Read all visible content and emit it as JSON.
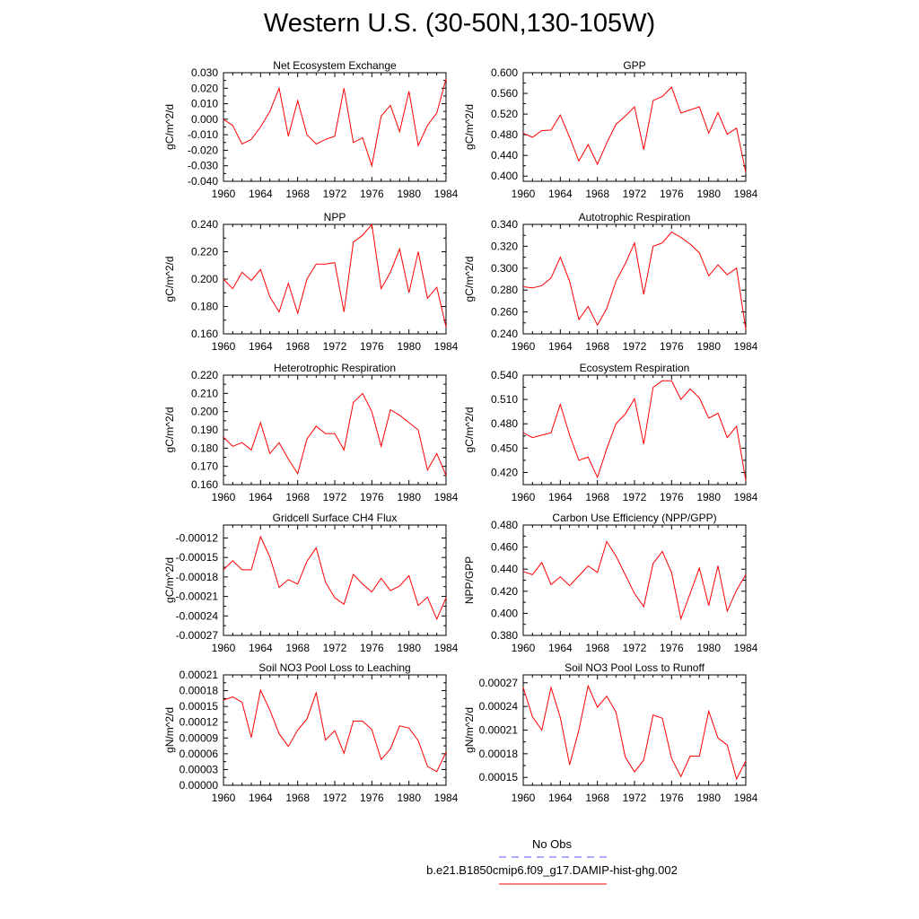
{
  "title": "Western U.S. (30-50N,130-105W)",
  "legend": {
    "obs_label": "No Obs",
    "obs_color": "#5a5aff",
    "run_label": "b.e21.B1850cmip6.f09_g17.DAMIP-hist-ghg.002",
    "run_color": "#ff0000"
  },
  "chart_data": [
    {
      "type": "line",
      "title": "Net Ecosystem Exchange",
      "ylabel": "gC/m^2/d",
      "xlabel": "",
      "xlim": [
        1960,
        1984
      ],
      "ylim": [
        -0.04,
        0.03
      ],
      "xticks": [
        1960,
        1964,
        1968,
        1972,
        1976,
        1980,
        1984
      ],
      "xtick_labels": [
        "1960",
        "1964",
        "1968",
        "1972",
        "1976",
        "1980",
        "1984"
      ],
      "yticks": [
        -0.04,
        -0.03,
        -0.02,
        -0.01,
        0.0,
        0.01,
        0.02,
        0.03
      ],
      "ytick_labels": [
        "-0.040",
        "-0.030",
        "-0.020",
        "-0.010",
        "0.000",
        "0.010",
        "0.020",
        "0.030"
      ],
      "x": [
        1960,
        1961,
        1962,
        1963,
        1964,
        1965,
        1966,
        1967,
        1968,
        1969,
        1970,
        1971,
        1972,
        1973,
        1974,
        1975,
        1976,
        1977,
        1978,
        1979,
        1980,
        1981,
        1982,
        1983,
        1984
      ],
      "series": [
        {
          "name": "b.e21.B1850cmip6.f09_g17.DAMIP-hist-ghg.002",
          "values": [
            0.0,
            -0.004,
            -0.016,
            -0.013,
            -0.005,
            0.005,
            0.02,
            -0.011,
            0.012,
            -0.01,
            -0.016,
            -0.013,
            -0.011,
            0.02,
            -0.015,
            -0.012,
            -0.03,
            0.002,
            0.009,
            -0.008,
            0.018,
            -0.017,
            -0.004,
            0.004,
            0.026
          ]
        }
      ]
    },
    {
      "type": "line",
      "title": "GPP",
      "ylabel": "gC/m^2/d",
      "xlabel": "",
      "xlim": [
        1960,
        1984
      ],
      "ylim": [
        0.39,
        0.6
      ],
      "xticks": [
        1960,
        1964,
        1968,
        1972,
        1976,
        1980,
        1984
      ],
      "xtick_labels": [
        "1960",
        "1964",
        "1968",
        "1972",
        "1976",
        "1980",
        "1984"
      ],
      "yticks": [
        0.4,
        0.44,
        0.48,
        0.52,
        0.56,
        0.6
      ],
      "ytick_labels": [
        "0.400",
        "0.440",
        "0.480",
        "0.520",
        "0.560",
        "0.600"
      ],
      "x": [
        1960,
        1961,
        1962,
        1963,
        1964,
        1965,
        1966,
        1967,
        1968,
        1969,
        1970,
        1971,
        1972,
        1973,
        1974,
        1975,
        1976,
        1977,
        1978,
        1979,
        1980,
        1981,
        1982,
        1983,
        1984
      ],
      "series": [
        {
          "name": "b.e21.B1850cmip6.f09_g17.DAMIP-hist-ghg.002",
          "values": [
            0.483,
            0.475,
            0.488,
            0.489,
            0.518,
            0.475,
            0.429,
            0.461,
            0.423,
            0.464,
            0.5,
            0.516,
            0.534,
            0.451,
            0.546,
            0.554,
            0.572,
            0.522,
            0.528,
            0.534,
            0.483,
            0.523,
            0.481,
            0.493,
            0.407
          ]
        }
      ]
    },
    {
      "type": "line",
      "title": "NPP",
      "ylabel": "gC/m^2/d",
      "xlabel": "",
      "xlim": [
        1960,
        1984
      ],
      "ylim": [
        0.16,
        0.24
      ],
      "xticks": [
        1960,
        1964,
        1968,
        1972,
        1976,
        1980,
        1984
      ],
      "xtick_labels": [
        "1960",
        "1964",
        "1968",
        "1972",
        "1976",
        "1980",
        "1984"
      ],
      "yticks": [
        0.16,
        0.18,
        0.2,
        0.22,
        0.24
      ],
      "ytick_labels": [
        "0.160",
        "0.180",
        "0.200",
        "0.220",
        "0.240"
      ],
      "x": [
        1960,
        1961,
        1962,
        1963,
        1964,
        1965,
        1966,
        1967,
        1968,
        1969,
        1970,
        1971,
        1972,
        1973,
        1974,
        1975,
        1976,
        1977,
        1978,
        1979,
        1980,
        1981,
        1982,
        1983,
        1984
      ],
      "series": [
        {
          "name": "b.e21.B1850cmip6.f09_g17.DAMIP-hist-ghg.002",
          "values": [
            0.2,
            0.193,
            0.205,
            0.199,
            0.207,
            0.187,
            0.176,
            0.197,
            0.175,
            0.2,
            0.211,
            0.211,
            0.212,
            0.176,
            0.227,
            0.232,
            0.24,
            0.193,
            0.205,
            0.222,
            0.19,
            0.22,
            0.186,
            0.194,
            0.165
          ]
        }
      ]
    },
    {
      "type": "line",
      "title": "Autotrophic Respiration",
      "ylabel": "gC/m^2/d",
      "xlabel": "",
      "xlim": [
        1960,
        1984
      ],
      "ylim": [
        0.24,
        0.34
      ],
      "xticks": [
        1960,
        1964,
        1968,
        1972,
        1976,
        1980,
        1984
      ],
      "xtick_labels": [
        "1960",
        "1964",
        "1968",
        "1972",
        "1976",
        "1980",
        "1984"
      ],
      "yticks": [
        0.24,
        0.26,
        0.28,
        0.3,
        0.32,
        0.34
      ],
      "ytick_labels": [
        "0.240",
        "0.260",
        "0.280",
        "0.300",
        "0.320",
        "0.340"
      ],
      "x": [
        1960,
        1961,
        1962,
        1963,
        1964,
        1965,
        1966,
        1967,
        1968,
        1969,
        1970,
        1971,
        1972,
        1973,
        1974,
        1975,
        1976,
        1977,
        1978,
        1979,
        1980,
        1981,
        1982,
        1983,
        1984
      ],
      "series": [
        {
          "name": "b.e21.B1850cmip6.f09_g17.DAMIP-hist-ghg.002",
          "values": [
            0.283,
            0.282,
            0.284,
            0.291,
            0.31,
            0.288,
            0.253,
            0.265,
            0.248,
            0.263,
            0.288,
            0.304,
            0.323,
            0.276,
            0.32,
            0.323,
            0.333,
            0.328,
            0.322,
            0.314,
            0.293,
            0.303,
            0.294,
            0.3,
            0.244
          ]
        }
      ]
    },
    {
      "type": "line",
      "title": "Heterotrophic Respiration",
      "ylabel": "gC/m^2/d",
      "xlabel": "",
      "xlim": [
        1960,
        1984
      ],
      "ylim": [
        0.16,
        0.22
      ],
      "xticks": [
        1960,
        1964,
        1968,
        1972,
        1976,
        1980,
        1984
      ],
      "xtick_labels": [
        "1960",
        "1964",
        "1968",
        "1972",
        "1976",
        "1980",
        "1984"
      ],
      "yticks": [
        0.16,
        0.17,
        0.18,
        0.19,
        0.2,
        0.21,
        0.22
      ],
      "ytick_labels": [
        "0.160",
        "0.170",
        "0.180",
        "0.190",
        "0.200",
        "0.210",
        "0.220"
      ],
      "x": [
        1960,
        1961,
        1962,
        1963,
        1964,
        1965,
        1966,
        1967,
        1968,
        1969,
        1970,
        1971,
        1972,
        1973,
        1974,
        1975,
        1976,
        1977,
        1978,
        1979,
        1980,
        1981,
        1982,
        1983,
        1984
      ],
      "series": [
        {
          "name": "b.e21.B1850cmip6.f09_g17.DAMIP-hist-ghg.002",
          "values": [
            0.186,
            0.181,
            0.183,
            0.179,
            0.194,
            0.177,
            0.183,
            0.174,
            0.166,
            0.185,
            0.192,
            0.188,
            0.188,
            0.179,
            0.205,
            0.21,
            0.2,
            0.181,
            0.201,
            0.198,
            0.194,
            0.19,
            0.168,
            0.177,
            0.165
          ]
        }
      ]
    },
    {
      "type": "line",
      "title": "Ecosystem Respiration",
      "ylabel": "gC/m^2/d",
      "xlabel": "",
      "xlim": [
        1960,
        1984
      ],
      "ylim": [
        0.405,
        0.54
      ],
      "xticks": [
        1960,
        1964,
        1968,
        1972,
        1976,
        1980,
        1984
      ],
      "xtick_labels": [
        "1960",
        "1964",
        "1968",
        "1972",
        "1976",
        "1980",
        "1984"
      ],
      "yticks": [
        0.42,
        0.45,
        0.48,
        0.51,
        0.54
      ],
      "ytick_labels": [
        "0.420",
        "0.450",
        "0.480",
        "0.510",
        "0.540"
      ],
      "x": [
        1960,
        1961,
        1962,
        1963,
        1964,
        1965,
        1966,
        1967,
        1968,
        1969,
        1970,
        1971,
        1972,
        1973,
        1974,
        1975,
        1976,
        1977,
        1978,
        1979,
        1980,
        1981,
        1982,
        1983,
        1984
      ],
      "series": [
        {
          "name": "b.e21.B1850cmip6.f09_g17.DAMIP-hist-ghg.002",
          "values": [
            0.469,
            0.463,
            0.466,
            0.469,
            0.504,
            0.466,
            0.435,
            0.439,
            0.414,
            0.449,
            0.48,
            0.492,
            0.511,
            0.455,
            0.525,
            0.533,
            0.533,
            0.51,
            0.523,
            0.512,
            0.487,
            0.493,
            0.463,
            0.477,
            0.41
          ]
        }
      ]
    },
    {
      "type": "line",
      "title": "Gridcell Surface CH4 Flux",
      "ylabel": "gC/m^2/d",
      "xlabel": "",
      "xlim": [
        1960,
        1984
      ],
      "ylim": [
        -0.00027,
        -0.0001
      ],
      "xticks": [
        1960,
        1964,
        1968,
        1972,
        1976,
        1980,
        1984
      ],
      "xtick_labels": [
        "1960",
        "1964",
        "1968",
        "1972",
        "1976",
        "1980",
        "1984"
      ],
      "yticks": [
        -0.00027,
        -0.00024,
        -0.00021,
        -0.00018,
        -0.00015,
        -0.00012
      ],
      "ytick_labels": [
        "-0.00027",
        "-0.00024",
        "-0.00021",
        "-0.00018",
        "-0.00015",
        "-0.00012"
      ],
      "x": [
        1960,
        1961,
        1962,
        1963,
        1964,
        1965,
        1966,
        1967,
        1968,
        1969,
        1970,
        1971,
        1972,
        1973,
        1974,
        1975,
        1976,
        1977,
        1978,
        1979,
        1980,
        1981,
        1982,
        1983,
        1984
      ],
      "series": [
        {
          "name": "b.e21.B1850cmip6.f09_g17.DAMIP-hist-ghg.002",
          "values": [
            -0.000169,
            -0.000155,
            -0.000169,
            -0.000169,
            -0.000118,
            -0.000149,
            -0.000196,
            -0.000184,
            -0.000191,
            -0.000156,
            -0.000135,
            -0.000188,
            -0.000212,
            -0.000222,
            -0.000176,
            -0.000191,
            -0.000203,
            -0.000182,
            -0.000201,
            -0.000194,
            -0.000178,
            -0.000224,
            -0.000211,
            -0.000245,
            -0.000212
          ]
        }
      ]
    },
    {
      "type": "line",
      "title": "Carbon Use Efficiency (NPP/GPP)",
      "ylabel": "NPP/GPP",
      "xlabel": "",
      "xlim": [
        1960,
        1984
      ],
      "ylim": [
        0.38,
        0.48
      ],
      "xticks": [
        1960,
        1964,
        1968,
        1972,
        1976,
        1980,
        1984
      ],
      "xtick_labels": [
        "1960",
        "1964",
        "1968",
        "1972",
        "1976",
        "1980",
        "1984"
      ],
      "yticks": [
        0.38,
        0.4,
        0.42,
        0.44,
        0.46,
        0.48
      ],
      "ytick_labels": [
        "0.380",
        "0.400",
        "0.420",
        "0.440",
        "0.460",
        "0.480"
      ],
      "x": [
        1960,
        1961,
        1962,
        1963,
        1964,
        1965,
        1966,
        1967,
        1968,
        1969,
        1970,
        1971,
        1972,
        1973,
        1974,
        1975,
        1976,
        1977,
        1978,
        1979,
        1980,
        1981,
        1982,
        1983,
        1984
      ],
      "series": [
        {
          "name": "b.e21.B1850cmip6.f09_g17.DAMIP-hist-ghg.002",
          "values": [
            0.438,
            0.435,
            0.446,
            0.426,
            0.433,
            0.425,
            0.434,
            0.443,
            0.437,
            0.465,
            0.452,
            0.435,
            0.418,
            0.406,
            0.445,
            0.456,
            0.437,
            0.395,
            0.418,
            0.441,
            0.407,
            0.443,
            0.402,
            0.421,
            0.435
          ]
        }
      ]
    },
    {
      "type": "line",
      "title": "Soil NO3 Pool Loss to Leaching",
      "ylabel": "gN/m^2/d",
      "xlabel": "",
      "xlim": [
        1960,
        1984
      ],
      "ylim": [
        0.0,
        0.00021
      ],
      "xticks": [
        1960,
        1964,
        1968,
        1972,
        1976,
        1980,
        1984
      ],
      "xtick_labels": [
        "1960",
        "1964",
        "1968",
        "1972",
        "1976",
        "1980",
        "1984"
      ],
      "yticks": [
        0.0,
        3e-05,
        6e-05,
        9e-05,
        0.00012,
        0.00015,
        0.00018,
        0.00021
      ],
      "ytick_labels": [
        "0.00000",
        "0.00003",
        "0.00006",
        "0.00009",
        "0.00012",
        "0.00015",
        "0.00018",
        "0.00021"
      ],
      "x": [
        1960,
        1961,
        1962,
        1963,
        1964,
        1965,
        1966,
        1967,
        1968,
        1969,
        1970,
        1971,
        1972,
        1973,
        1974,
        1975,
        1976,
        1977,
        1978,
        1979,
        1980,
        1981,
        1982,
        1983,
        1984
      ],
      "series": [
        {
          "name": "b.e21.B1850cmip6.f09_g17.DAMIP-hist-ghg.002",
          "values": [
            0.000162,
            0.000168,
            0.000158,
            9.1e-05,
            0.000181,
            0.000143,
            9.8e-05,
            7.4e-05,
            0.000105,
            0.000126,
            0.000176,
            8.6e-05,
            0.000104,
            6.1e-05,
            0.000122,
            0.000122,
            0.000106,
            4.9e-05,
            6.9e-05,
            0.000113,
            0.000109,
            8.5e-05,
            3.6e-05,
            2.6e-05,
            6.3e-05
          ]
        }
      ]
    },
    {
      "type": "line",
      "title": "Soil NO3 Pool Loss to Runoff",
      "ylabel": "gN/m^2/d",
      "xlabel": "",
      "xlim": [
        1960,
        1984
      ],
      "ylim": [
        0.00014,
        0.00028
      ],
      "xticks": [
        1960,
        1964,
        1968,
        1972,
        1976,
        1980,
        1984
      ],
      "xtick_labels": [
        "1960",
        "1964",
        "1968",
        "1972",
        "1976",
        "1980",
        "1984"
      ],
      "yticks": [
        0.00015,
        0.00018,
        0.00021,
        0.00024,
        0.00027
      ],
      "ytick_labels": [
        "0.00015",
        "0.00018",
        "0.00021",
        "0.00024",
        "0.00027"
      ],
      "x": [
        1960,
        1961,
        1962,
        1963,
        1964,
        1965,
        1966,
        1967,
        1968,
        1969,
        1970,
        1971,
        1972,
        1973,
        1974,
        1975,
        1976,
        1977,
        1978,
        1979,
        1980,
        1981,
        1982,
        1983,
        1984
      ],
      "series": [
        {
          "name": "b.e21.B1850cmip6.f09_g17.DAMIP-hist-ghg.002",
          "values": [
            0.000264,
            0.000227,
            0.00021,
            0.000264,
            0.000226,
            0.000166,
            0.00021,
            0.000266,
            0.000239,
            0.000253,
            0.000233,
            0.000176,
            0.000157,
            0.000172,
            0.000229,
            0.000225,
            0.000174,
            0.000151,
            0.000177,
            0.000177,
            0.000234,
            0.0002,
            0.000191,
            0.000148,
            0.000171
          ]
        }
      ]
    }
  ]
}
